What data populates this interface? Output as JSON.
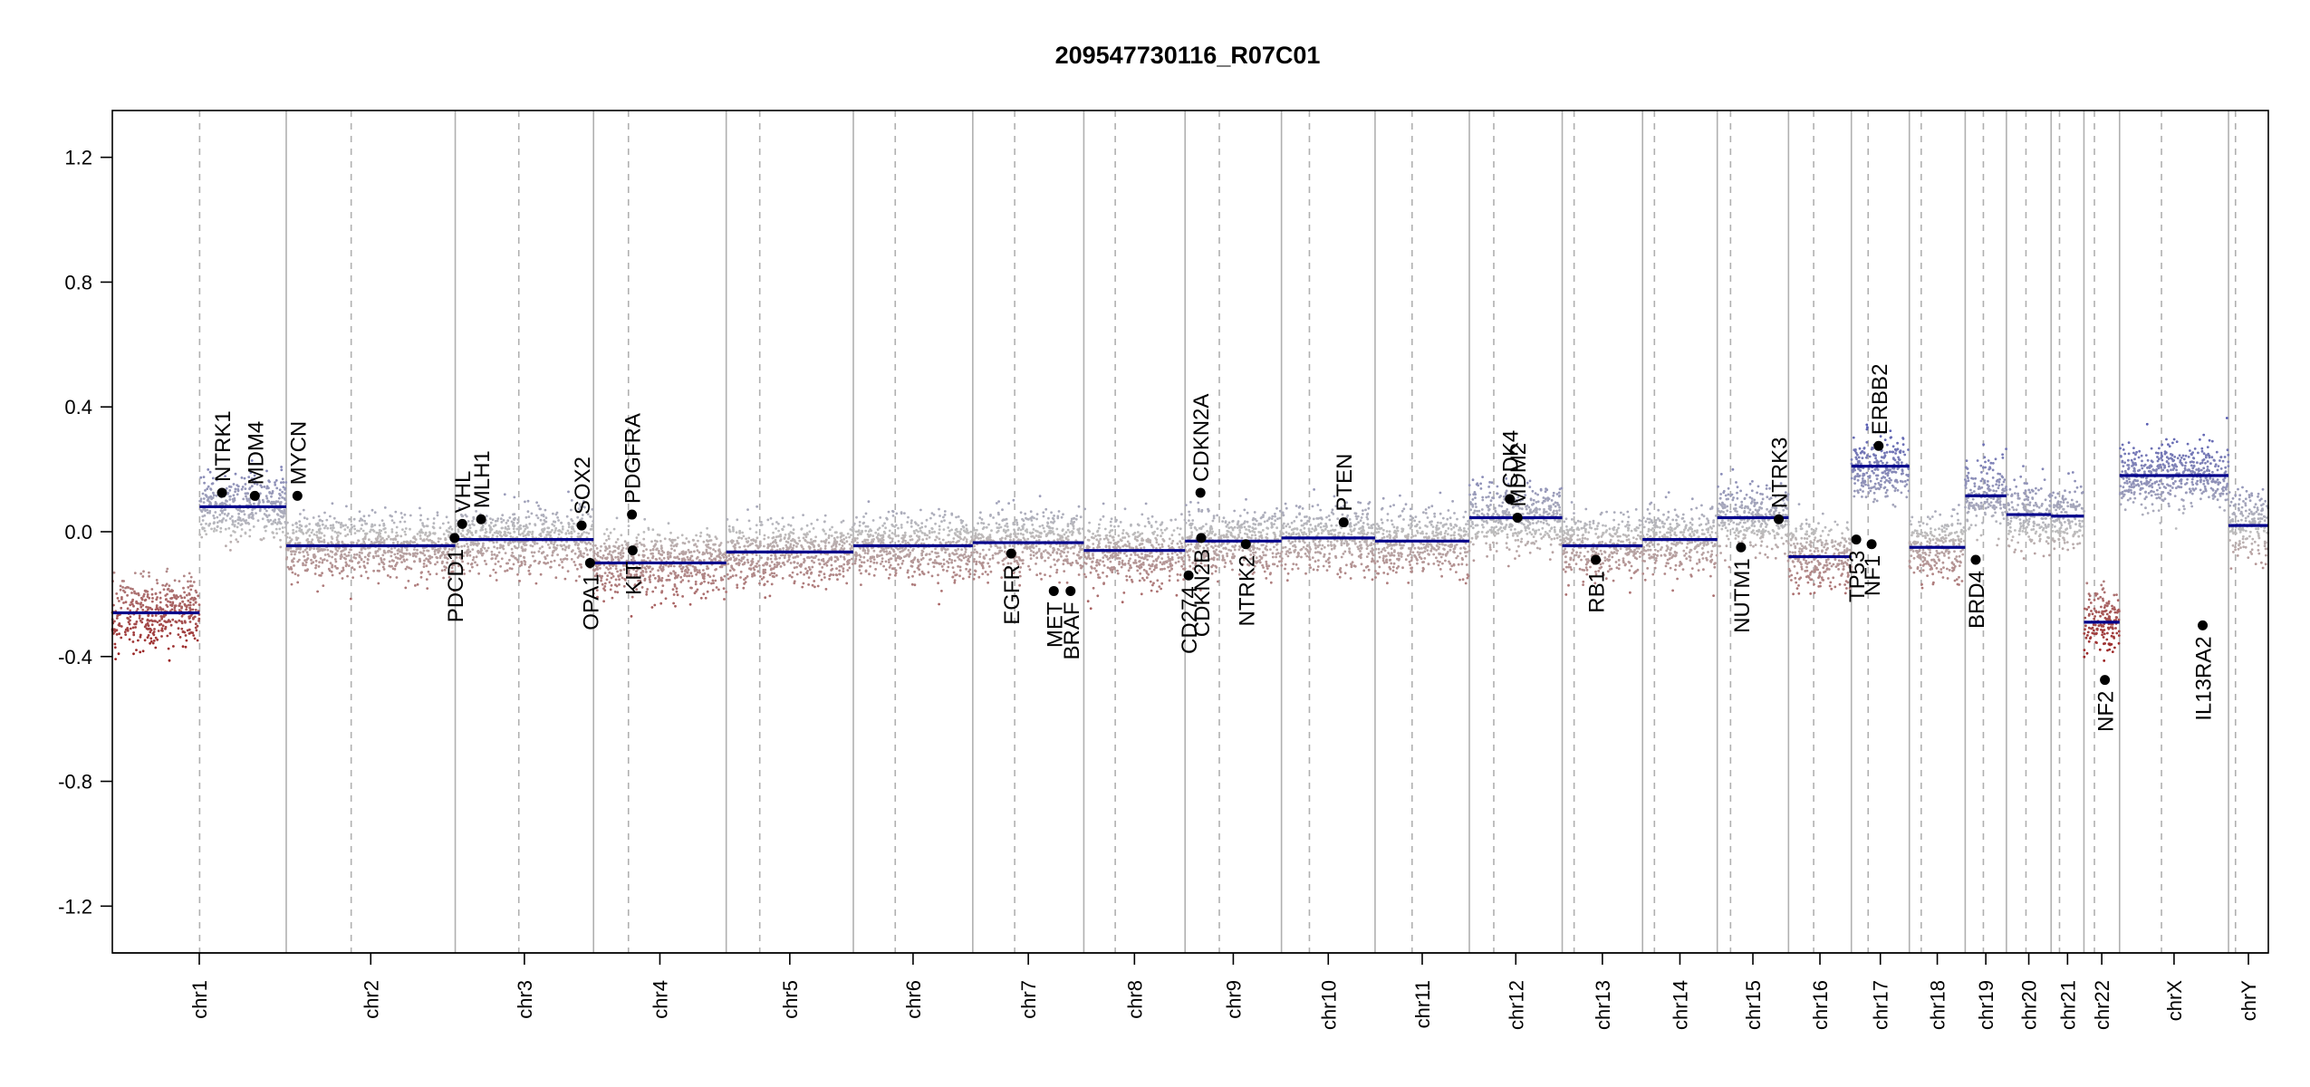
{
  "chart_data": {
    "type": "scatter",
    "title": "209547730116_R07C01",
    "xlabel": "",
    "ylabel": "",
    "ylim": [
      -1.35,
      1.35
    ],
    "y_ticks": [
      "1.2",
      "0.8",
      "0.4",
      "0.0",
      "-0.4",
      "-0.8",
      "-1.2"
    ],
    "y_tick_values": [
      1.2,
      0.8,
      0.4,
      0.0,
      -0.4,
      -0.8,
      -1.2
    ],
    "grid": false,
    "colors": {
      "gain": "#2a2eb8",
      "loss": "#9a1010",
      "neutral": "#bdbdbd",
      "segment": "#00008b",
      "chrom_line": "#b0b0b0"
    },
    "x_range_mb": [
      0,
      3018
    ],
    "chromosomes": [
      {
        "name": "chr1",
        "start": 0,
        "end": 249,
        "centromere": 125
      },
      {
        "name": "chr2",
        "start": 249,
        "end": 491,
        "centromere": 93
      },
      {
        "name": "chr3",
        "start": 491,
        "end": 689,
        "centromere": 91
      },
      {
        "name": "chr4",
        "start": 689,
        "end": 879,
        "centromere": 50
      },
      {
        "name": "chr5",
        "start": 879,
        "end": 1061,
        "centromere": 48
      },
      {
        "name": "chr6",
        "start": 1061,
        "end": 1232,
        "centromere": 60
      },
      {
        "name": "chr7",
        "start": 1232,
        "end": 1391,
        "centromere": 60
      },
      {
        "name": "chr8",
        "start": 1391,
        "end": 1536,
        "centromere": 45
      },
      {
        "name": "chr9",
        "start": 1536,
        "end": 1674,
        "centromere": 49
      },
      {
        "name": "chr10",
        "start": 1674,
        "end": 1808,
        "centromere": 40
      },
      {
        "name": "chr11",
        "start": 1808,
        "end": 1943,
        "centromere": 53
      },
      {
        "name": "chr12",
        "start": 1943,
        "end": 2076,
        "centromere": 35
      },
      {
        "name": "chr13",
        "start": 2076,
        "end": 2191,
        "centromere": 17
      },
      {
        "name": "chr14",
        "start": 2191,
        "end": 2298,
        "centromere": 17
      },
      {
        "name": "chr15",
        "start": 2298,
        "end": 2400,
        "centromere": 19
      },
      {
        "name": "chr16",
        "start": 2400,
        "end": 2490,
        "centromere": 36
      },
      {
        "name": "chr17",
        "start": 2490,
        "end": 2573,
        "centromere": 24
      },
      {
        "name": "chr18",
        "start": 2573,
        "end": 2653,
        "centromere": 17
      },
      {
        "name": "chr19",
        "start": 2653,
        "end": 2712,
        "centromere": 26
      },
      {
        "name": "chr20",
        "start": 2712,
        "end": 2776,
        "centromere": 28
      },
      {
        "name": "chr21",
        "start": 2776,
        "end": 2823,
        "centromere": 12
      },
      {
        "name": "chr22",
        "start": 2823,
        "end": 2874,
        "centromere": 15
      },
      {
        "name": "chrX",
        "start": 2874,
        "end": 3030,
        "centromere": 60
      },
      {
        "name": "chrY",
        "start": 3030,
        "end": 3087,
        "centromere": 10
      }
    ],
    "segments": [
      {
        "chrom": "chr1",
        "from": 0,
        "to": 125,
        "value": -0.26
      },
      {
        "chrom": "chr1",
        "from": 125,
        "to": 249,
        "value": 0.08
      },
      {
        "chrom": "chr2",
        "from": 0,
        "to": 242,
        "value": -0.045
      },
      {
        "chrom": "chr3",
        "from": 0,
        "to": 198,
        "value": -0.025
      },
      {
        "chrom": "chr4",
        "from": 0,
        "to": 190,
        "value": -0.1
      },
      {
        "chrom": "chr5",
        "from": 0,
        "to": 182,
        "value": -0.065
      },
      {
        "chrom": "chr6",
        "from": 0,
        "to": 171,
        "value": -0.045
      },
      {
        "chrom": "chr7",
        "from": 0,
        "to": 159,
        "value": -0.035
      },
      {
        "chrom": "chr8",
        "from": 0,
        "to": 145,
        "value": -0.06
      },
      {
        "chrom": "chr9",
        "from": 0,
        "to": 138,
        "value": -0.03
      },
      {
        "chrom": "chr10",
        "from": 0,
        "to": 134,
        "value": -0.02
      },
      {
        "chrom": "chr11",
        "from": 0,
        "to": 135,
        "value": -0.03
      },
      {
        "chrom": "chr12",
        "from": 0,
        "to": 133,
        "value": 0.045
      },
      {
        "chrom": "chr13",
        "from": 0,
        "to": 115,
        "value": -0.045
      },
      {
        "chrom": "chr14",
        "from": 0,
        "to": 107,
        "value": -0.025
      },
      {
        "chrom": "chr15",
        "from": 0,
        "to": 102,
        "value": 0.045
      },
      {
        "chrom": "chr16",
        "from": 0,
        "to": 90,
        "value": -0.08
      },
      {
        "chrom": "chr17",
        "from": 0,
        "to": 83,
        "value": 0.21
      },
      {
        "chrom": "chr18",
        "from": 0,
        "to": 80,
        "value": -0.05
      },
      {
        "chrom": "chr19",
        "from": 0,
        "to": 59,
        "value": 0.115
      },
      {
        "chrom": "chr20",
        "from": 0,
        "to": 64,
        "value": 0.055
      },
      {
        "chrom": "chr21",
        "from": 0,
        "to": 47,
        "value": 0.05
      },
      {
        "chrom": "chr22",
        "from": 0,
        "to": 51,
        "value": -0.29
      },
      {
        "chrom": "chrX",
        "from": 0,
        "to": 156,
        "value": 0.18
      },
      {
        "chrom": "chrY",
        "from": 0,
        "to": 57,
        "value": 0.02
      }
    ],
    "genes": [
      {
        "name": "NTRK1",
        "pos": 157,
        "value": 0.125
      },
      {
        "name": "MDM4",
        "pos": 204,
        "value": 0.115
      },
      {
        "name": "MYCN",
        "pos": 265,
        "value": 0.115
      },
      {
        "name": "PDCD1",
        "pos": 490,
        "value": -0.02
      },
      {
        "name": "VHL",
        "pos": 501,
        "value": 0.025
      },
      {
        "name": "MLH1",
        "pos": 528,
        "value": 0.04
      },
      {
        "name": "SOX2",
        "pos": 672,
        "value": 0.02
      },
      {
        "name": "OPA1",
        "pos": 684,
        "value": -0.1
      },
      {
        "name": "PDGFRA",
        "pos": 744,
        "value": 0.055
      },
      {
        "name": "KIT",
        "pos": 745,
        "value": -0.06
      },
      {
        "name": "EGFR",
        "pos": 1287,
        "value": -0.07
      },
      {
        "name": "BRAF",
        "pos": 1372,
        "value": -0.19
      },
      {
        "name": "MET",
        "pos": 1348,
        "value": -0.19
      },
      {
        "name": "CDKN2A",
        "pos": 1558,
        "value": 0.125
      },
      {
        "name": "CDKN2B",
        "pos": 1559,
        "value": -0.02
      },
      {
        "name": "CD274",
        "pos": 1541,
        "value": -0.14
      },
      {
        "name": "NTRK2",
        "pos": 1623,
        "value": -0.04
      },
      {
        "name": "PTEN",
        "pos": 1763,
        "value": 0.03
      },
      {
        "name": "CDK4",
        "pos": 2001,
        "value": 0.105
      },
      {
        "name": "MDM2",
        "pos": 2012,
        "value": 0.045
      },
      {
        "name": "RB1",
        "pos": 2124,
        "value": -0.09
      },
      {
        "name": "NUTM1",
        "pos": 2332,
        "value": -0.05
      },
      {
        "name": "NTRK3",
        "pos": 2386,
        "value": 0.04
      },
      {
        "name": "TP53",
        "pos": 2497,
        "value": -0.025
      },
      {
        "name": "NF1",
        "pos": 2519,
        "value": -0.04
      },
      {
        "name": "ERBB2",
        "pos": 2529,
        "value": 0.275
      },
      {
        "name": "BRD4",
        "pos": 2668,
        "value": -0.09
      },
      {
        "name": "NF2",
        "pos": 2853,
        "value": -0.475
      },
      {
        "name": "IL13RA2",
        "pos": 2993,
        "value": -0.3
      }
    ]
  }
}
